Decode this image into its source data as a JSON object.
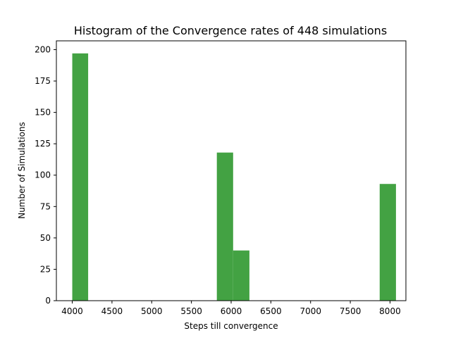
{
  "chart_data": {
    "type": "bar",
    "title": "Histogram of the Convergence rates of 448 simulations",
    "xlabel": "Steps till convergence",
    "ylabel": "Number of Simulations",
    "xlim": [
      3800,
      8200
    ],
    "ylim": [
      0,
      207
    ],
    "xticks": [
      4000,
      4500,
      5000,
      5500,
      6000,
      6500,
      7000,
      7500,
      8000
    ],
    "yticks": [
      0,
      25,
      50,
      75,
      100,
      125,
      150,
      175,
      200
    ],
    "bar_color": "#43a243",
    "grid": false,
    "bins": [
      {
        "x0": 4000,
        "x1": 4200,
        "count": 197
      },
      {
        "x0": 5820,
        "x1": 6025,
        "count": 118
      },
      {
        "x0": 6025,
        "x1": 6230,
        "count": 40
      },
      {
        "x0": 7870,
        "x1": 8075,
        "count": 93
      }
    ]
  }
}
